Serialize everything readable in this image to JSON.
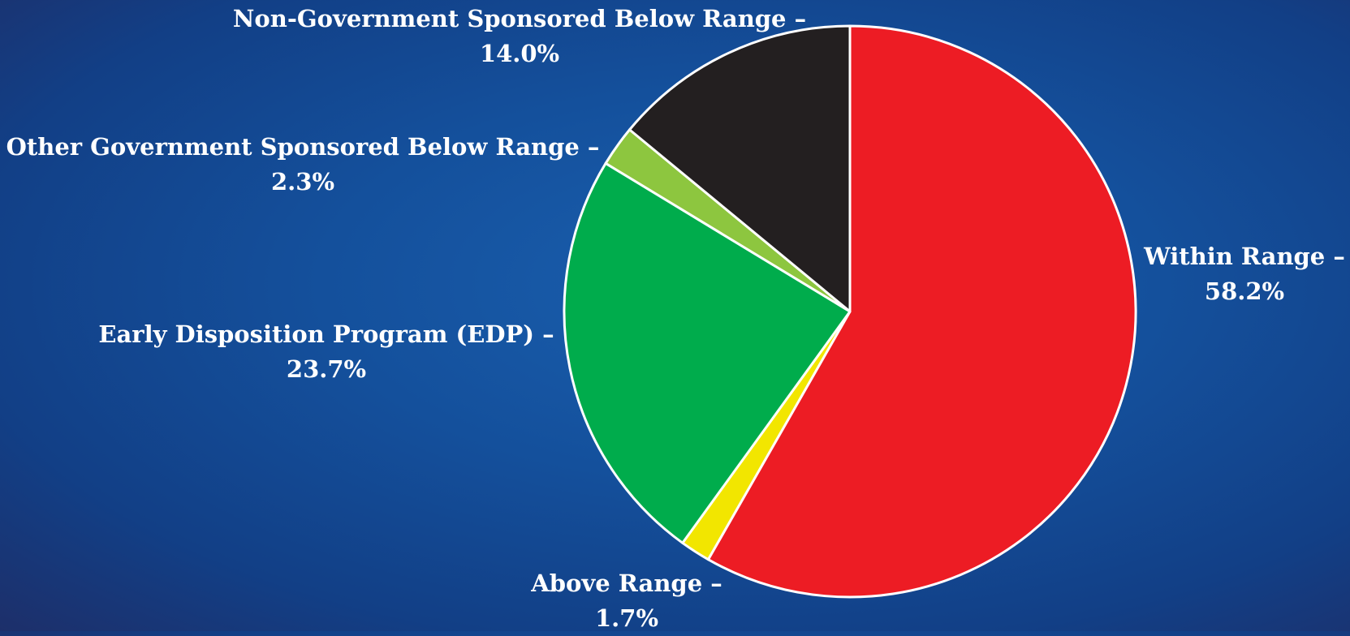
{
  "chart_data": {
    "type": "pie",
    "start_angle_deg": 0,
    "direction": "clockwise",
    "slices": [
      {
        "label": "Within Range –",
        "value": 58.2,
        "value_label": "58.2%",
        "color": "#ed1c24"
      },
      {
        "label": "Above Range –",
        "value": 1.7,
        "value_label": "1.7%",
        "color": "#f2e600"
      },
      {
        "label": "Early Disposition Program (EDP) –",
        "value": 23.7,
        "value_label": "23.7%",
        "color": "#00ac4c"
      },
      {
        "label": "Other Government Sponsored Below Range –",
        "value": 2.3,
        "value_label": "2.3%",
        "color": "#8dc63f"
      },
      {
        "label": "Non-Government Sponsored Below Range –",
        "value": 14.0,
        "value_label": "14.0%",
        "color": "#231f20"
      }
    ],
    "slice_border_color": "#ffffff"
  }
}
